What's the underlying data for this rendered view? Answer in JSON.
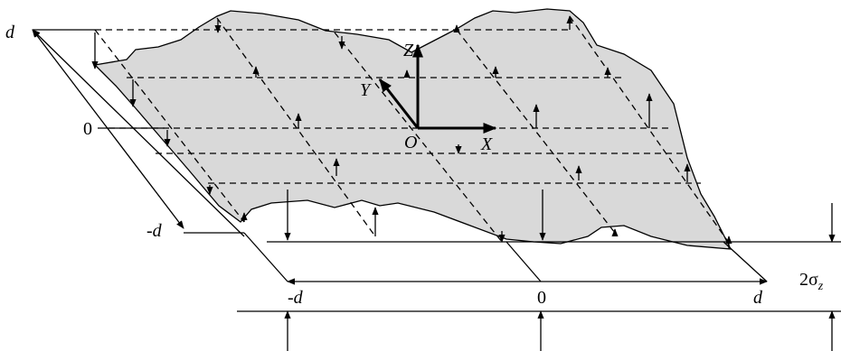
{
  "figure": {
    "labels": {
      "d_top_left": "d",
      "zero_left": "0",
      "neg_d_left": "-d",
      "neg_d_bottom": "-d",
      "zero_bottom": "0",
      "d_bottom": "d",
      "sigma": "2σ",
      "sigma_sub": "z"
    },
    "axes": {
      "x": "X",
      "y": "Y",
      "z": "Z",
      "origin": "O"
    },
    "colors": {
      "surface_fill": "#d9d9d9",
      "stroke": "#000000"
    }
  }
}
